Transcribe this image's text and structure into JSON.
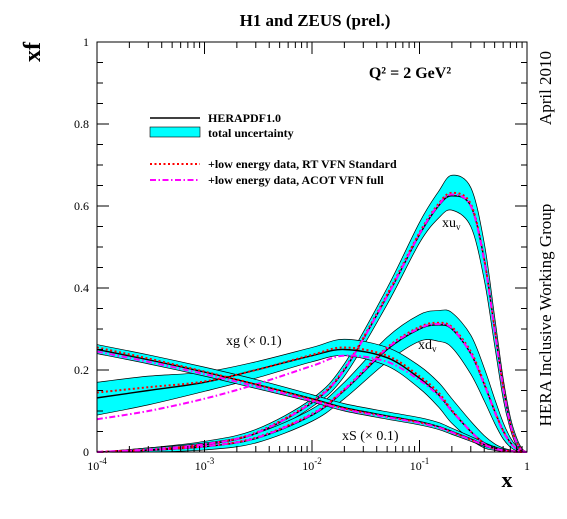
{
  "chart_data": {
    "type": "line",
    "title": "H1 and ZEUS (prel.)",
    "annotation_q2": "Q² = 2 GeV²",
    "xlabel": "x",
    "ylabel": "xf",
    "xscale": "log",
    "xlim": [
      0.0001,
      1
    ],
    "ylim": [
      0,
      1
    ],
    "xticks": [
      {
        "base": "10",
        "exp": "-4",
        "value": 0.0001
      },
      {
        "base": "10",
        "exp": "-3",
        "value": 0.001
      },
      {
        "base": "10",
        "exp": "-2",
        "value": 0.01
      },
      {
        "base": "10",
        "exp": "-1",
        "value": 0.1
      },
      {
        "base": "1",
        "exp": "",
        "value": 1
      }
    ],
    "yticks": [
      "0",
      "0.2",
      "0.4",
      "0.6",
      "0.8",
      "1"
    ],
    "side_text_top": "April 2010",
    "side_text_bottom": "HERA Inclusive Working Group",
    "legend": {
      "placement": "upper-left",
      "entries": [
        {
          "label": "HERAPDF1.0",
          "style": "solid",
          "color": "#000000"
        },
        {
          "label": "total uncertainty",
          "style": "band",
          "color": "#00ffff"
        },
        {
          "label": "+low energy data, RT VFN Standard",
          "style": "dotted",
          "color": "#ff0000"
        },
        {
          "label": "+low energy data, ACOT VFN full",
          "style": "dashdot",
          "color": "#ff00ff"
        }
      ]
    },
    "curve_labels": {
      "xuv": "xu",
      "xuv_sub": "v",
      "xdv": "xd",
      "xdv_sub": "v",
      "xg": "xg (× 0.1)",
      "xS": "xS (× 0.1)"
    },
    "x_points": [
      0.0001,
      0.0003,
      0.001,
      0.003,
      0.01,
      0.02,
      0.05,
      0.1,
      0.15,
      0.2,
      0.3,
      0.4,
      0.5,
      0.6,
      0.7,
      0.8,
      0.9,
      1.0
    ],
    "series": [
      {
        "id": "xuv",
        "name": "xu_v",
        "central": [
          0.0,
          0.005,
          0.018,
          0.045,
          0.12,
          0.2,
          0.38,
          0.53,
          0.6,
          0.625,
          0.6,
          0.47,
          0.3,
          0.16,
          0.07,
          0.025,
          0.004,
          0.0
        ],
        "band_lo": [
          0.0,
          0.0,
          0.01,
          0.035,
          0.11,
          0.185,
          0.36,
          0.51,
          0.57,
          0.59,
          0.55,
          0.42,
          0.26,
          0.13,
          0.055,
          0.015,
          0.002,
          0.0
        ],
        "band_hi": [
          0.0,
          0.01,
          0.026,
          0.055,
          0.13,
          0.215,
          0.4,
          0.56,
          0.635,
          0.675,
          0.645,
          0.51,
          0.33,
          0.18,
          0.085,
          0.035,
          0.008,
          0.0
        ],
        "rt": [
          0.0,
          0.006,
          0.019,
          0.047,
          0.123,
          0.203,
          0.384,
          0.535,
          0.605,
          0.632,
          0.605,
          0.47,
          0.3,
          0.158,
          0.068,
          0.024,
          0.004,
          0.0
        ],
        "acot": [
          0.0,
          0.006,
          0.019,
          0.046,
          0.121,
          0.201,
          0.38,
          0.532,
          0.602,
          0.628,
          0.6,
          0.466,
          0.296,
          0.156,
          0.067,
          0.023,
          0.004,
          0.0
        ]
      },
      {
        "id": "xdv",
        "name": "xd_v",
        "central": [
          0.0,
          0.004,
          0.013,
          0.033,
          0.09,
          0.15,
          0.25,
          0.3,
          0.31,
          0.3,
          0.24,
          0.165,
          0.1,
          0.052,
          0.023,
          0.008,
          0.002,
          0.0
        ],
        "band_lo": [
          0.0,
          0.0,
          0.005,
          0.022,
          0.075,
          0.13,
          0.22,
          0.27,
          0.27,
          0.255,
          0.19,
          0.125,
          0.07,
          0.032,
          0.012,
          0.003,
          0.0,
          0.0
        ],
        "band_hi": [
          0.0,
          0.01,
          0.022,
          0.045,
          0.105,
          0.17,
          0.28,
          0.335,
          0.345,
          0.34,
          0.285,
          0.205,
          0.13,
          0.072,
          0.035,
          0.014,
          0.004,
          0.0
        ],
        "rt": [
          0.0,
          0.005,
          0.014,
          0.035,
          0.093,
          0.153,
          0.255,
          0.305,
          0.315,
          0.305,
          0.245,
          0.168,
          0.1,
          0.052,
          0.023,
          0.008,
          0.002,
          0.0
        ],
        "acot": [
          0.0,
          0.005,
          0.014,
          0.034,
          0.092,
          0.152,
          0.253,
          0.302,
          0.312,
          0.302,
          0.24,
          0.165,
          0.098,
          0.05,
          0.022,
          0.008,
          0.002,
          0.0
        ]
      },
      {
        "id": "xg",
        "name": "xg (× 0.1)",
        "central": [
          0.132,
          0.15,
          0.17,
          0.2,
          0.235,
          0.25,
          0.23,
          0.18,
          0.14,
          0.1,
          0.05,
          0.022,
          0.01,
          0.004,
          0.002,
          0.0,
          0.0,
          0.0
        ],
        "band_lo": [
          0.09,
          0.115,
          0.148,
          0.18,
          0.22,
          0.235,
          0.21,
          0.155,
          0.11,
          0.07,
          0.03,
          0.01,
          0.004,
          0.001,
          0.0,
          0.0,
          0.0,
          0.0
        ],
        "band_hi": [
          0.17,
          0.185,
          0.195,
          0.22,
          0.255,
          0.275,
          0.255,
          0.21,
          0.17,
          0.13,
          0.075,
          0.04,
          0.02,
          0.01,
          0.005,
          0.002,
          0.0,
          0.0
        ],
        "rt": [
          0.145,
          0.158,
          0.172,
          0.2,
          0.237,
          0.255,
          0.235,
          0.185,
          0.145,
          0.102,
          0.05,
          0.02,
          0.008,
          0.003,
          0.001,
          0.0,
          0.0,
          0.0
        ],
        "acot": [
          0.08,
          0.1,
          0.13,
          0.165,
          0.21,
          0.235,
          0.22,
          0.175,
          0.138,
          0.1,
          0.05,
          0.02,
          0.008,
          0.003,
          0.001,
          0.0,
          0.0,
          0.0
        ]
      },
      {
        "id": "xS",
        "name": "xS (× 0.1)",
        "central": [
          0.25,
          0.225,
          0.195,
          0.165,
          0.13,
          0.108,
          0.088,
          0.074,
          0.062,
          0.05,
          0.032,
          0.018,
          0.01,
          0.005,
          0.002,
          0.001,
          0.0,
          0.0
        ],
        "band_lo": [
          0.24,
          0.215,
          0.185,
          0.155,
          0.122,
          0.1,
          0.08,
          0.066,
          0.055,
          0.043,
          0.026,
          0.014,
          0.007,
          0.003,
          0.001,
          0.0,
          0.0,
          0.0
        ],
        "band_hi": [
          0.262,
          0.237,
          0.207,
          0.177,
          0.14,
          0.118,
          0.098,
          0.084,
          0.072,
          0.058,
          0.038,
          0.023,
          0.013,
          0.007,
          0.003,
          0.001,
          0.0,
          0.0
        ],
        "rt": [
          0.255,
          0.228,
          0.196,
          0.165,
          0.128,
          0.106,
          0.086,
          0.072,
          0.06,
          0.048,
          0.03,
          0.017,
          0.009,
          0.004,
          0.002,
          0.001,
          0.0,
          0.0
        ],
        "acot": [
          0.245,
          0.22,
          0.19,
          0.16,
          0.125,
          0.104,
          0.085,
          0.071,
          0.06,
          0.048,
          0.03,
          0.017,
          0.009,
          0.004,
          0.002,
          0.001,
          0.0,
          0.0
        ]
      }
    ]
  }
}
